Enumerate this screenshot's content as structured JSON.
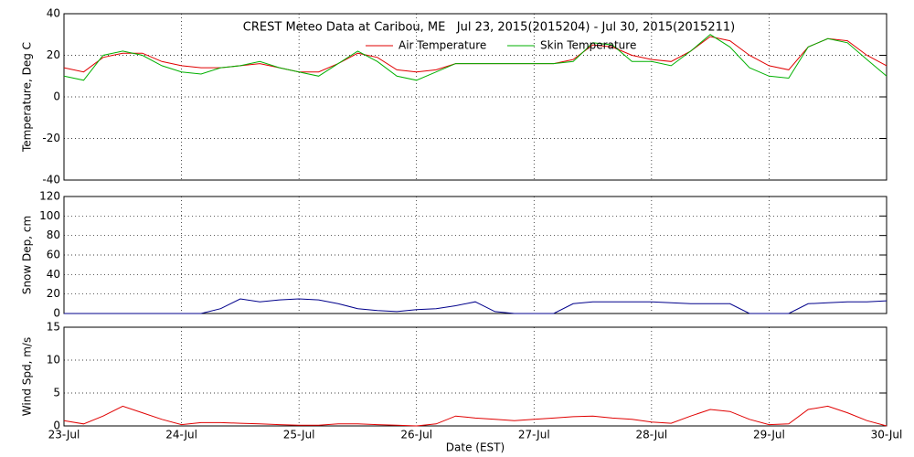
{
  "chart_data": [
    {
      "type": "line",
      "title": "CREST Meteo Data at Caribou, ME   Jul 23, 2015(2015204) - Jul 30, 2015(2015211)",
      "y_label": "Temperature, Deg C",
      "x": [
        0,
        0.167,
        0.333,
        0.5,
        0.667,
        0.833,
        1,
        1.167,
        1.333,
        1.5,
        1.667,
        1.833,
        2,
        2.167,
        2.333,
        2.5,
        2.667,
        2.833,
        3,
        3.167,
        3.333,
        3.5,
        3.667,
        3.833,
        4,
        4.167,
        4.333,
        4.5,
        4.667,
        4.833,
        5,
        5.167,
        5.333,
        5.5,
        5.667,
        5.833,
        6,
        6.167,
        6.333,
        6.5,
        6.667,
        6.833,
        7
      ],
      "series": [
        {
          "name": "Air Temperature",
          "color": "#e00000",
          "values": [
            14,
            12,
            19,
            21,
            21,
            17,
            15,
            14,
            14,
            15,
            16,
            14,
            12,
            12,
            16,
            21,
            19,
            13,
            12,
            13,
            16,
            16,
            16,
            16,
            16,
            16,
            18,
            25,
            24,
            20,
            18,
            17,
            22,
            29,
            27,
            20,
            15,
            13,
            24,
            28,
            27,
            20,
            15
          ]
        },
        {
          "name": "Skin Temperature",
          "color": "#00b000",
          "values": [
            10,
            8,
            20,
            22,
            20,
            15,
            12,
            11,
            14,
            15,
            17,
            14,
            12,
            10,
            16,
            22,
            17,
            10,
            8,
            12,
            16,
            16,
            16,
            16,
            16,
            16,
            17,
            26,
            25,
            17,
            17,
            15,
            22,
            30,
            24,
            14,
            10,
            9,
            24,
            28,
            26,
            18,
            10
          ]
        }
      ],
      "xlim": [
        0,
        7
      ],
      "xticks": [
        0,
        1,
        2,
        3,
        4,
        5,
        6,
        7
      ],
      "ylim": [
        -40,
        40
      ],
      "yticks": [
        -40,
        -20,
        0,
        20,
        40
      ],
      "grid": true
    },
    {
      "type": "line",
      "y_label": "Snow Dep, cm",
      "x": [
        0,
        0.167,
        0.333,
        0.5,
        0.667,
        0.833,
        1,
        1.167,
        1.333,
        1.5,
        1.667,
        1.833,
        2,
        2.167,
        2.333,
        2.5,
        2.667,
        2.833,
        3,
        3.167,
        3.333,
        3.5,
        3.667,
        3.833,
        4,
        4.167,
        4.333,
        4.5,
        4.667,
        4.833,
        5,
        5.167,
        5.333,
        5.5,
        5.667,
        5.833,
        6,
        6.167,
        6.333,
        6.5,
        6.667,
        6.833,
        7
      ],
      "series": [
        {
          "name": "Snow Depth",
          "color": "#00008b",
          "values": [
            0,
            0,
            0,
            0,
            0,
            0,
            0,
            0,
            5,
            15,
            12,
            14,
            15,
            14,
            10,
            5,
            3,
            2,
            4,
            5,
            8,
            12,
            2,
            0,
            0,
            0,
            10,
            12,
            12,
            12,
            12,
            11,
            10,
            10,
            10,
            0,
            0,
            0,
            10,
            11,
            12,
            12,
            13
          ]
        }
      ],
      "xlim": [
        0,
        7
      ],
      "xticks": [
        0,
        1,
        2,
        3,
        4,
        5,
        6,
        7
      ],
      "ylim": [
        0,
        120
      ],
      "yticks": [
        0,
        20,
        40,
        60,
        80,
        100,
        120
      ],
      "grid": true
    },
    {
      "type": "line",
      "y_label": "Wind Spd, m/s",
      "x_label": "Date (EST)",
      "x": [
        0,
        0.167,
        0.333,
        0.5,
        0.667,
        0.833,
        1,
        1.167,
        1.333,
        1.5,
        1.667,
        1.833,
        2,
        2.167,
        2.333,
        2.5,
        2.667,
        2.833,
        3,
        3.167,
        3.333,
        3.5,
        3.667,
        3.833,
        4,
        4.167,
        4.333,
        4.5,
        4.667,
        4.833,
        5,
        5.167,
        5.333,
        5.5,
        5.667,
        5.833,
        6,
        6.167,
        6.333,
        6.5,
        6.667,
        6.833,
        7
      ],
      "series": [
        {
          "name": "Wind Speed",
          "color": "#e00000",
          "values": [
            0.8,
            0.3,
            1.5,
            3,
            2,
            1,
            0.2,
            0.5,
            0.5,
            0.4,
            0.3,
            0.2,
            0.1,
            0.1,
            0.3,
            0.3,
            0.2,
            0.1,
            0,
            0.3,
            1.5,
            1.2,
            1,
            0.8,
            1,
            1.2,
            1.4,
            1.5,
            1.2,
            1,
            0.6,
            0.4,
            1.5,
            2.5,
            2.2,
            1,
            0.2,
            0.3,
            2.5,
            3,
            2,
            0.8,
            0
          ]
        }
      ],
      "xlim": [
        0,
        7
      ],
      "xticks": [
        {
          "value": 0,
          "label": "23-Jul"
        },
        {
          "value": 1,
          "label": "24-Jul"
        },
        {
          "value": 2,
          "label": "25-Jul"
        },
        {
          "value": 3,
          "label": "26-Jul"
        },
        {
          "value": 4,
          "label": "27-Jul"
        },
        {
          "value": 5,
          "label": "28-Jul"
        },
        {
          "value": 6,
          "label": "29-Jul"
        },
        {
          "value": 7,
          "label": "30-Jul"
        }
      ],
      "ylim": [
        0,
        15
      ],
      "yticks": [
        0,
        5,
        10,
        15
      ],
      "grid": true
    }
  ]
}
